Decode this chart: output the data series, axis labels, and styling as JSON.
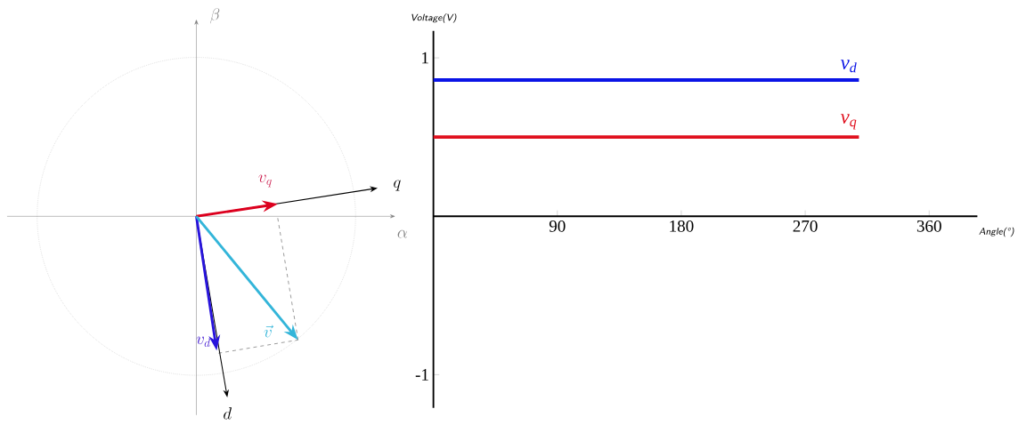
{
  "chart_data": [
    {
      "type": "other",
      "annotations": [
        "\\beta",
        "\\alpha",
        "q",
        "d",
        "v_{q}",
        "v_{d}",
        "\\vec{v}"
      ]
    },
    {
      "type": "line",
      "xlabel": "Angle(°)",
      "ylabel": "Voltage(V)",
      "x": [
        0,
        309
      ],
      "series": [
        {
          "name": "v$_{d}$",
          "color": "#0a14e6",
          "values": [
            0.86,
            0.86
          ]
        },
        {
          "name": "v$_{q}$",
          "color": "#e0101e",
          "values": [
            0.5,
            0.5
          ]
        }
      ],
      "xlim": [
        0,
        395
      ],
      "ylim": [
        -1.21,
        1.17
      ],
      "xticks": [
        90,
        180,
        270,
        360
      ],
      "yticks": [
        -1,
        1
      ]
    }
  ]
}
